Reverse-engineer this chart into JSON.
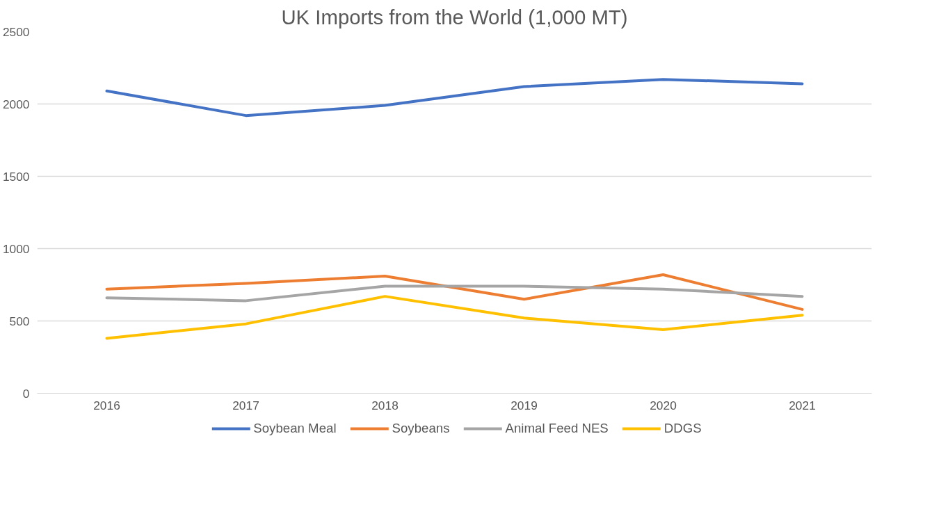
{
  "chart_data": {
    "type": "line",
    "title": "UK Imports from the World (1,000 MT)",
    "categories": [
      "2016",
      "2017",
      "2018",
      "2019",
      "2020",
      "2021"
    ],
    "series": [
      {
        "name": "Soybean Meal",
        "color": "#4472c4",
        "values": [
          2090,
          1920,
          1990,
          2120,
          2170,
          2140
        ]
      },
      {
        "name": "Soybeans",
        "color": "#ed7d31",
        "values": [
          720,
          760,
          810,
          650,
          820,
          580
        ]
      },
      {
        "name": "Animal Feed NES",
        "color": "#a5a5a5",
        "values": [
          660,
          640,
          740,
          740,
          720,
          670
        ]
      },
      {
        "name": "DDGS",
        "color": "#ffc000",
        "values": [
          380,
          480,
          670,
          520,
          440,
          540
        ]
      }
    ],
    "ylim": [
      0,
      2500
    ],
    "yticks": [
      0,
      500,
      1000,
      1500,
      2000,
      2500
    ],
    "grid": "y",
    "legend": "bottom",
    "marker": "none",
    "line_style": "solid"
  }
}
